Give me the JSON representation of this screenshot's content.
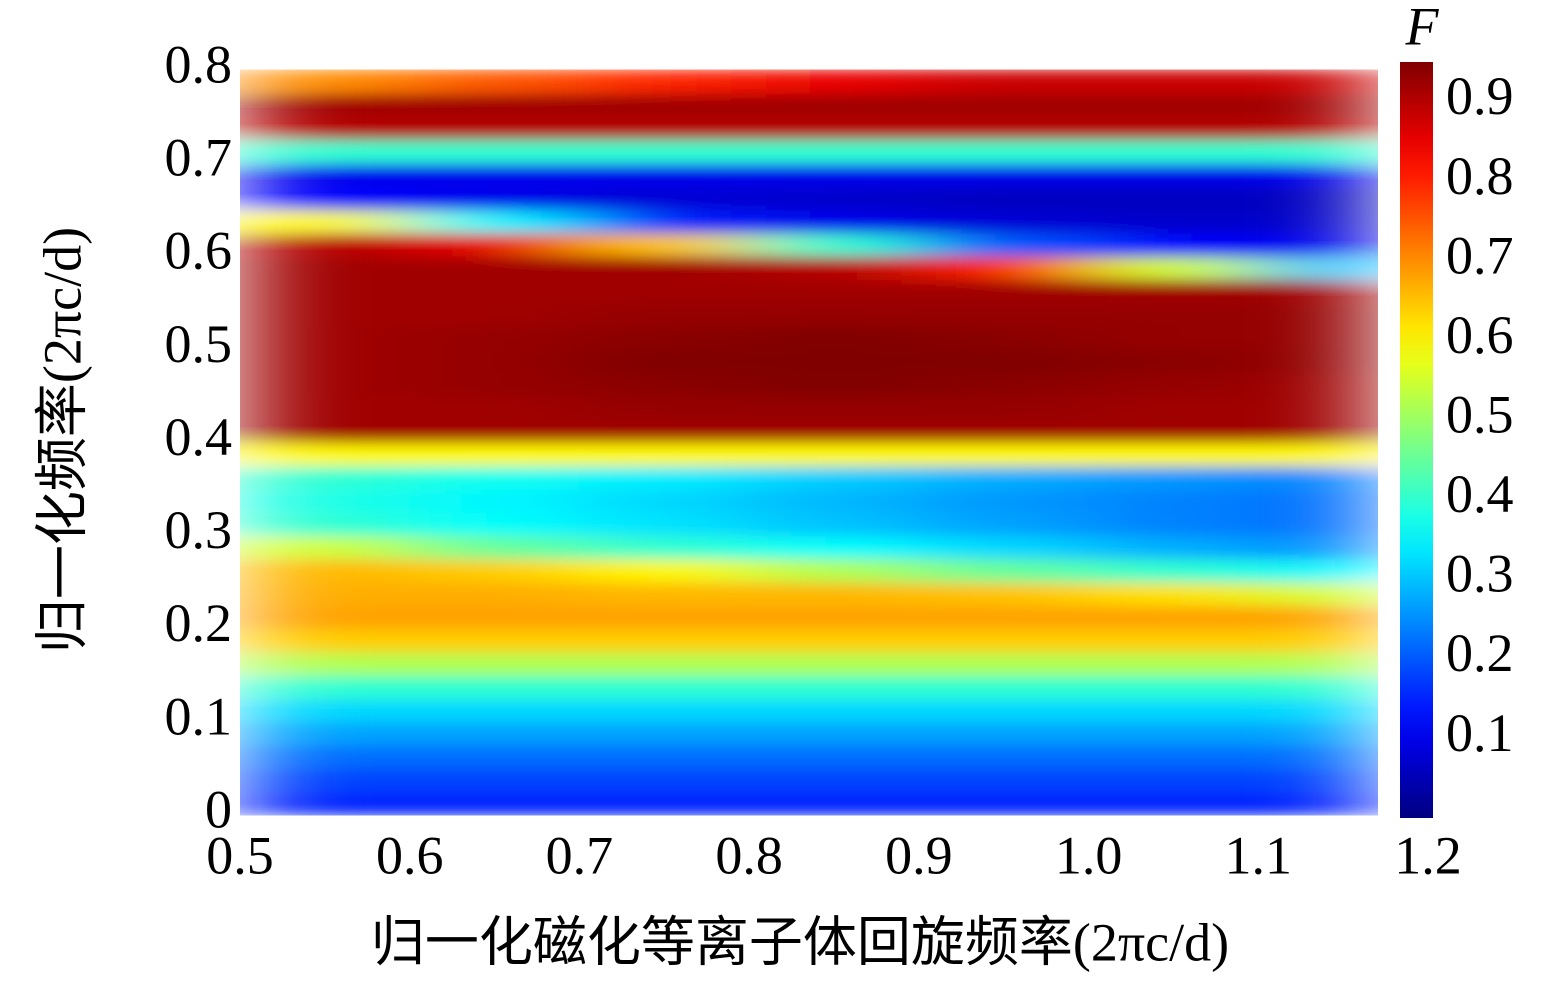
{
  "chart_data": {
    "type": "heatmap",
    "x_label": "归一化磁化等离子体回旋频率(2πc/d)",
    "y_label": "归一化频率(2πc/d)",
    "colorbar_label": "F",
    "colormap": "jet",
    "xlim": [
      0.5,
      1.2
    ],
    "xticks": [
      0.5,
      0.6,
      0.7,
      0.8,
      0.9,
      {
        "value": 1,
        "label": "1.0"
      },
      1.1,
      1.2
    ],
    "ylim": [
      0,
      0.8
    ],
    "yticks": [
      0,
      0.1,
      0.2,
      0.3,
      0.4,
      0.5,
      0.6,
      0.7,
      0.8
    ],
    "clim": [
      0,
      0.95
    ],
    "cticks": [
      0.1,
      0.2,
      0.3,
      0.4,
      0.5,
      0.6,
      0.7,
      0.8,
      0.9
    ],
    "x_edges": [
      0.5,
      0.6,
      0.7,
      0.8,
      0.9,
      1,
      1.1,
      1.17
    ],
    "y_edges": [
      0,
      0.025,
      0.05,
      0.075,
      0.1,
      0.125,
      0.15,
      0.175,
      0.2,
      0.225,
      0.25,
      0.275,
      0.3,
      0.325,
      0.35,
      0.375,
      0.4,
      0.425,
      0.45,
      0.475,
      0.5,
      0.525,
      0.55,
      0.575,
      0.6,
      0.625,
      0.65,
      0.675,
      0.7,
      0.725,
      0.75,
      0.775,
      0.8
    ],
    "z": [
      [
        0.15,
        0.15,
        0.15,
        0.15,
        0.15,
        0.15,
        0.15
      ],
      [
        0.18,
        0.18,
        0.18,
        0.18,
        0.18,
        0.18,
        0.18
      ],
      [
        0.22,
        0.22,
        0.22,
        0.22,
        0.22,
        0.22,
        0.22
      ],
      [
        0.27,
        0.27,
        0.27,
        0.27,
        0.27,
        0.27,
        0.27
      ],
      [
        0.32,
        0.32,
        0.32,
        0.32,
        0.32,
        0.32,
        0.32
      ],
      [
        0.4,
        0.4,
        0.4,
        0.4,
        0.4,
        0.4,
        0.4
      ],
      [
        0.52,
        0.52,
        0.52,
        0.52,
        0.52,
        0.52,
        0.52
      ],
      [
        0.64,
        0.64,
        0.64,
        0.64,
        0.64,
        0.64,
        0.64
      ],
      [
        0.68,
        0.68,
        0.68,
        0.68,
        0.68,
        0.68,
        0.68
      ],
      [
        0.67,
        0.67,
        0.66,
        0.66,
        0.65,
        0.62,
        0.55
      ],
      [
        0.66,
        0.64,
        0.6,
        0.52,
        0.45,
        0.4,
        0.35
      ],
      [
        0.55,
        0.45,
        0.4,
        0.36,
        0.32,
        0.28,
        0.25
      ],
      [
        0.4,
        0.36,
        0.33,
        0.3,
        0.27,
        0.24,
        0.22
      ],
      [
        0.38,
        0.35,
        0.32,
        0.29,
        0.26,
        0.24,
        0.22
      ],
      [
        0.4,
        0.37,
        0.34,
        0.31,
        0.28,
        0.26,
        0.24
      ],
      [
        0.6,
        0.6,
        0.6,
        0.6,
        0.6,
        0.6,
        0.6
      ],
      [
        0.92,
        0.92,
        0.92,
        0.92,
        0.92,
        0.92,
        0.92
      ],
      [
        0.92,
        0.92,
        0.93,
        0.93,
        0.93,
        0.92,
        0.92
      ],
      [
        0.92,
        0.93,
        0.94,
        0.95,
        0.94,
        0.93,
        0.92
      ],
      [
        0.92,
        0.93,
        0.95,
        0.95,
        0.95,
        0.94,
        0.93
      ],
      [
        0.92,
        0.93,
        0.94,
        0.95,
        0.94,
        0.93,
        0.93
      ],
      [
        0.92,
        0.92,
        0.93,
        0.93,
        0.93,
        0.93,
        0.93
      ],
      [
        0.92,
        0.92,
        0.92,
        0.92,
        0.92,
        0.92,
        0.92
      ],
      [
        0.92,
        0.92,
        0.92,
        0.9,
        0.8,
        0.55,
        0.3
      ],
      [
        0.9,
        0.85,
        0.65,
        0.4,
        0.2,
        0.12,
        0.1
      ],
      [
        0.6,
        0.35,
        0.15,
        0.1,
        0.08,
        0.07,
        0.07
      ],
      [
        0.12,
        0.1,
        0.08,
        0.07,
        0.06,
        0.06,
        0.06
      ],
      [
        0.1,
        0.1,
        0.1,
        0.1,
        0.1,
        0.1,
        0.1
      ],
      [
        0.4,
        0.4,
        0.4,
        0.4,
        0.4,
        0.4,
        0.4
      ],
      [
        0.9,
        0.9,
        0.9,
        0.9,
        0.9,
        0.9,
        0.9
      ],
      [
        0.92,
        0.92,
        0.92,
        0.92,
        0.92,
        0.92,
        0.92
      ],
      [
        0.7,
        0.75,
        0.8,
        0.85,
        0.88,
        0.88,
        0.88
      ]
    ]
  }
}
